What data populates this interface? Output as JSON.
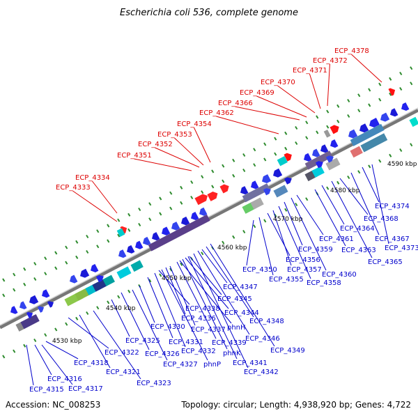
{
  "title": "Escherichia coli 536, complete genome",
  "accession": "Accession: NC_008253",
  "summary": "Topology: circular; Length: 4,938,920 bp; Genes: 4,722",
  "colors": {
    "backbone": "#888888",
    "tick_marker": "#2e8b2e",
    "highlight_label": "#dd0000",
    "normal_label": "#0000cc"
  },
  "scale_ticks": [
    "4530 kbp",
    "4540 kbp",
    "4550 kbp",
    "4560 kbp",
    "4570 kbp",
    "4580 kbp",
    "4590 kbp"
  ],
  "highlighted_genes": [
    "ECP_4333",
    "ECP_4334",
    "ECP_4351",
    "ECP_4352",
    "ECP_4353",
    "ECP_4354",
    "ECP_4362",
    "ECP_4366",
    "ECP_4369",
    "ECP_4370",
    "ECP_4371",
    "ECP_4372",
    "ECP_4378"
  ],
  "other_genes": [
    "ECP_4315",
    "ECP_4316",
    "ECP_4317",
    "ECP_4318",
    "ECP_4321",
    "ECP_4322",
    "ECP_4323",
    "ECP_4325",
    "ECP_4326",
    "ECP_4327",
    "ECP_4330",
    "ECP_4331",
    "ECP_4332",
    "phnP",
    "ECP_4336",
    "ECP_4337",
    "ECP_4338",
    "ECP_4339",
    "phnK",
    "ECP_4341",
    "ECP_4342",
    "phnH",
    "ECP_4344",
    "ECP_4345",
    "ECP_4346",
    "ECP_4347",
    "ECP_4348",
    "ECP_4349",
    "ECP_4350",
    "ECP_4355",
    "ECP_4356",
    "ECP_4357",
    "ECP_4358",
    "ECP_4359",
    "ECP_4360",
    "ECP_4361",
    "ECP_4363",
    "ECP_4364",
    "ECP_4365",
    "ECP_4367",
    "ECP_4368",
    "ECP_4373",
    "ECP_4374"
  ]
}
